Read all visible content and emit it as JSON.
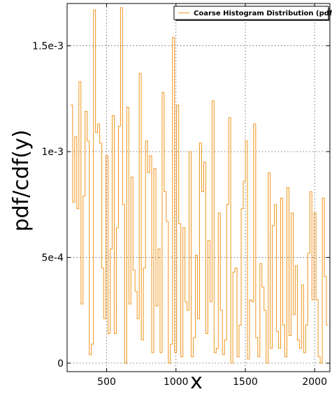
{
  "chart_data": {
    "type": "line",
    "step": true,
    "xlabel": "x",
    "ylabel": "pdf/cdf(y)",
    "xlim": [
      215,
      2110
    ],
    "ylim": [
      -4e-05,
      0.0017
    ],
    "xticks": [
      500,
      1000,
      1500,
      2000
    ],
    "xtick_labels": [
      "500",
      "1000",
      "1500",
      "2000"
    ],
    "yticks": [
      0,
      0.0005,
      0.001,
      0.0015
    ],
    "ytick_labels": [
      "0",
      "5e-4",
      "1e-3",
      "1.5e-3"
    ],
    "grid": true,
    "legend_position": "top-right",
    "series": [
      {
        "name": "Coarse Histogram Distribution (pdf)",
        "color": "#f0961e",
        "x": [
          240,
          255,
          270,
          285,
          300,
          315,
          330,
          345,
          360,
          375,
          390,
          405,
          420,
          435,
          450,
          465,
          480,
          495,
          510,
          525,
          540,
          555,
          570,
          585,
          600,
          615,
          630,
          645,
          660,
          675,
          690,
          705,
          720,
          735,
          750,
          765,
          780,
          795,
          810,
          825,
          840,
          855,
          870,
          885,
          900,
          915,
          930,
          945,
          960,
          975,
          990,
          1005,
          1020,
          1035,
          1050,
          1065,
          1080,
          1095,
          1110,
          1125,
          1140,
          1155,
          1170,
          1185,
          1200,
          1215,
          1230,
          1245,
          1260,
          1275,
          1290,
          1305,
          1320,
          1335,
          1350,
          1365,
          1380,
          1395,
          1410,
          1425,
          1440,
          1455,
          1470,
          1485,
          1500,
          1515,
          1530,
          1545,
          1560,
          1575,
          1590,
          1605,
          1620,
          1635,
          1650,
          1665,
          1680,
          1695,
          1710,
          1725,
          1740,
          1755,
          1770,
          1785,
          1800,
          1815,
          1830,
          1845,
          1860,
          1875,
          1890,
          1905,
          1920,
          1935,
          1950,
          1965,
          1980,
          1995,
          2010,
          2025,
          2040,
          2055,
          2070,
          2085
        ],
        "y": [
          0.00122,
          0.00076,
          0.00107,
          0.00073,
          0.00133,
          0.00028,
          0.00079,
          0.00119,
          0.00105,
          4e-05,
          9e-05,
          0.00167,
          0.00109,
          0.00113,
          0.00104,
          0.00045,
          0.00021,
          0.00098,
          0.00014,
          0.00054,
          0.00117,
          0.00014,
          0.00064,
          0.00112,
          0.00168,
          0.00075,
          0.0,
          0.00121,
          0.00028,
          0.00088,
          0.00044,
          0.00034,
          0.00021,
          0.00137,
          0.00011,
          0.00045,
          0.00105,
          0.0009,
          0.00098,
          5e-05,
          0.00092,
          0.00027,
          0.00054,
          5e-05,
          0.00128,
          0.00081,
          0.00067,
          0.0,
          9e-05,
          0.00154,
          5e-05,
          0.00122,
          0.00066,
          3e-05,
          0.00064,
          0.00029,
          0.00025,
          0.001,
          3e-05,
          0.00012,
          0.00051,
          0.00021,
          0.00104,
          0.00081,
          0.00095,
          0.00014,
          0.00058,
          0.00029,
          0.00124,
          5e-05,
          7e-05,
          0.00071,
          0.00025,
          4e-05,
          0.00011,
          0.00075,
          0.00116,
          0.0,
          0.00043,
          0.00045,
          3e-05,
          0.00018,
          0.00073,
          0.00086,
          0.00105,
          2e-05,
          0.0003,
          0.00029,
          0.00113,
          0.00012,
          3e-05,
          0.00047,
          0.00036,
          0.00025,
          0.0,
          0.0009,
          7e-05,
          0.00065,
          0.00075,
          0.00015,
          7e-05,
          0.00078,
          0.00018,
          3e-05,
          0.00083,
          0.00013,
          0.00071,
          0.00023,
          0.00046,
          0.00011,
          7e-05,
          0.00037,
          5e-05,
          0.00018,
          0.00052,
          0.00081,
          0.0003,
          0.00071,
          0.0003,
          3e-05,
          0.0,
          0.00078,
          0.00041,
          0.00018
        ]
      }
    ]
  }
}
